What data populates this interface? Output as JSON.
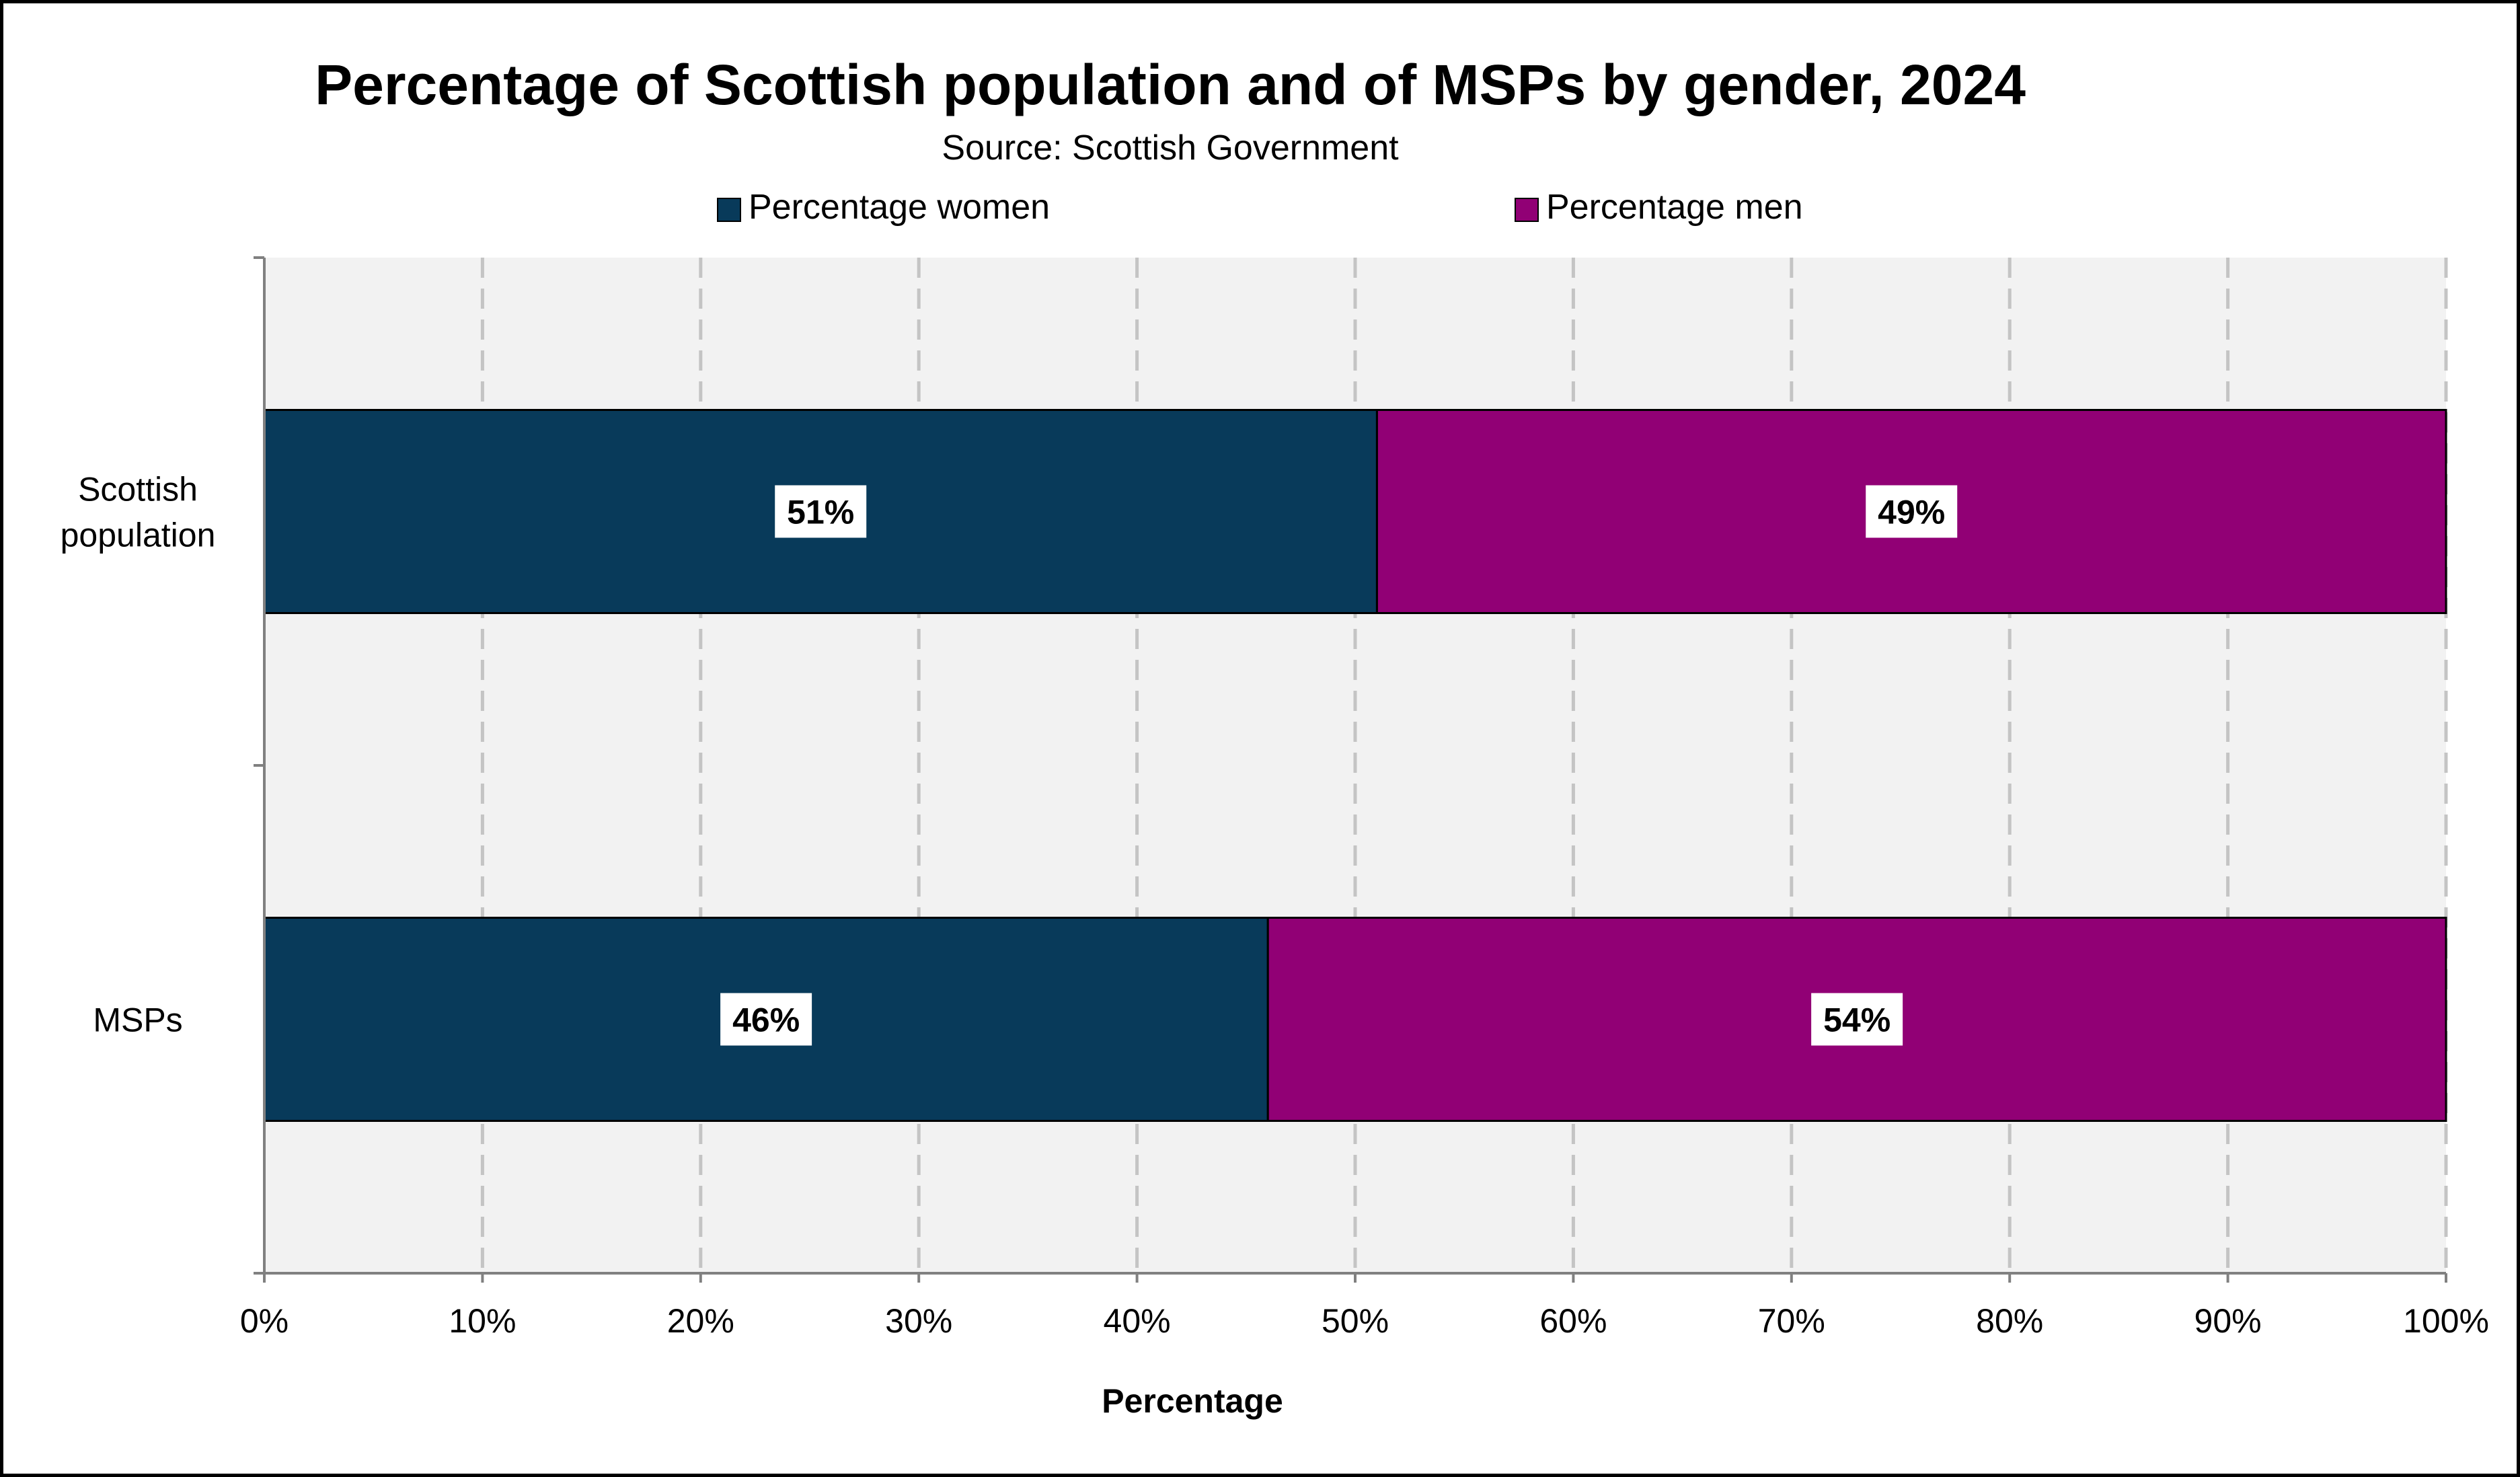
{
  "chart_data": {
    "type": "bar",
    "orientation": "horizontal",
    "stacked": true,
    "title": "Percentage of Scottish population and of MSPs by gender, 2024",
    "subtitle": "Source: Scottish Government",
    "categories": [
      "Scottish population",
      "MSPs"
    ],
    "category_lines": [
      [
        "Scottish",
        "population"
      ],
      [
        "MSPs"
      ]
    ],
    "series": [
      {
        "name": "Percentage women",
        "color": "#083a5a",
        "values": [
          51,
          46
        ],
        "labels": [
          "51%",
          "46%"
        ]
      },
      {
        "name": "Percentage men",
        "color": "#910075",
        "values": [
          49,
          54
        ],
        "labels": [
          "49%",
          "54%"
        ]
      }
    ],
    "xlabel": "Percentage",
    "ylabel": "",
    "xlim": [
      0,
      100
    ],
    "x_ticks": [
      "0%",
      "10%",
      "20%",
      "30%",
      "40%",
      "50%",
      "60%",
      "70%",
      "80%",
      "90%",
      "100%"
    ],
    "grid": "vertical dashed",
    "legend_position": "top",
    "plot_background": "#f2f2f2"
  }
}
